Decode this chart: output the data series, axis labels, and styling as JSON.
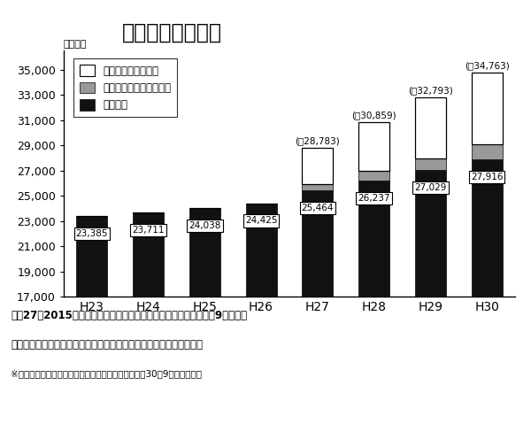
{
  "categories": [
    "H23",
    "H24",
    "H25",
    "H26",
    "H27",
    "H28",
    "H29",
    "H30"
  ],
  "hoikujo": [
    23385,
    23711,
    24038,
    24425,
    25464,
    26237,
    27029,
    27916
  ],
  "yochien": [
    0,
    0,
    0,
    0,
    500,
    724,
    953,
    1208
  ],
  "tokutei": [
    0,
    0,
    0,
    0,
    2819,
    3898,
    4811,
    5639
  ],
  "hoikujo_labels": [
    "23,385",
    "23,711",
    "24,038",
    "24,425",
    "25,464",
    "26,237",
    "27,029",
    "27,916"
  ],
  "total_labels": [
    "",
    "",
    "",
    "",
    "(計28,783)",
    "(計30,859)",
    "(計32,793)",
    "(計34,763)"
  ],
  "title": "保育所等数の推移",
  "ylabel": "（か所）",
  "ylim_min": 17000,
  "ylim_max": 36500,
  "yticks": [
    17000,
    19000,
    21000,
    23000,
    25000,
    27000,
    29000,
    31000,
    33000,
    35000
  ],
  "color_hoikujo": "#111111",
  "color_yochien": "#999999",
  "color_tokutei": "#ffffff",
  "legend_labels": [
    "特定地域型保育事業",
    "幼稚園型認定こども園等",
    "保育所等"
  ],
  "footnote1": "平成27（2015）年以降、保育施設の数は急増。中でも待機児童の9割を占め",
  "footnote2": "る０～２才児を受け入れる「特定地域型保育事業」の増加が目立つ。",
  "footnote3": "※厚生労働省「保育所等関連状況取りまとめ」（平成30年9月公表）より"
}
